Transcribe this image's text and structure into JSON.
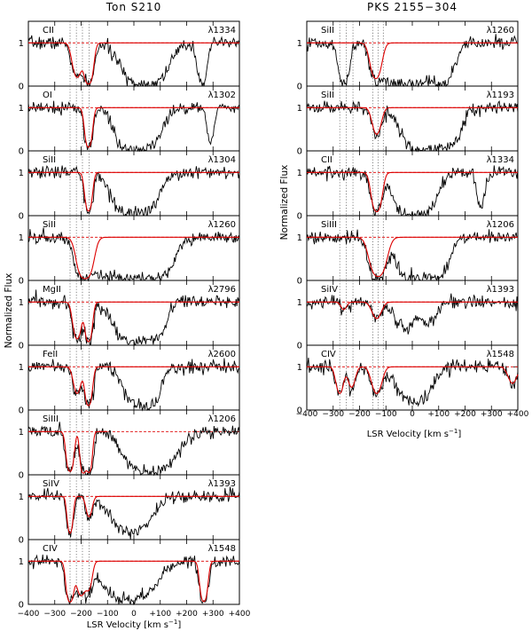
{
  "figure": {
    "ylabel": "Normalized Flux",
    "xlabel": "LSR Velocity [km s",
    "xlabel_sup": "−1",
    "xlabel_end": "]"
  },
  "chart_data": [
    {
      "type": "line",
      "title": "Ton S210",
      "xlim": [
        -400,
        400
      ],
      "ylim": [
        0,
        1.5
      ],
      "x_ticks": [
        -400,
        -300,
        -200,
        -100,
        0,
        100,
        200,
        300,
        400
      ],
      "x_tick_labels": [
        "−400",
        "−300",
        "−200",
        "−100",
        "0",
        "+100",
        "+200",
        "+300",
        "+400"
      ],
      "y_ticks": [
        0,
        1
      ],
      "component_velocities": [
        -242,
        -218,
        -195,
        -170
      ],
      "panels": [
        {
          "ion": "CII",
          "line": "λ1334",
          "absorptions": [
            [
              -215,
              0.5,
              16
            ],
            [
              -172,
              0.95,
              14
            ],
            [
              40,
              1.0,
              55
            ],
            [
              260,
              0.7,
              14
            ]
          ],
          "model": [
            [
              -215,
              0.5,
              14
            ],
            [
              -172,
              0.95,
              12
            ]
          ],
          "model_xmax": 400
        },
        {
          "ion": "OI",
          "line": "λ1302",
          "absorptions": [
            [
              -172,
              0.8,
              12
            ],
            [
              20,
              0.98,
              50
            ],
            [
              -18,
              0.6,
              30
            ],
            [
              290,
              0.5,
              10
            ]
          ],
          "model": [
            [
              -172,
              0.78,
              10
            ]
          ],
          "model_xmax": 400
        },
        {
          "ion": "SiII",
          "line": "λ1304",
          "absorptions": [
            [
              -172,
              0.7,
              12
            ],
            [
              20,
              0.95,
              45
            ],
            [
              -40,
              0.5,
              35
            ]
          ],
          "model": [
            [
              -172,
              0.7,
              10
            ]
          ],
          "model_xmax": 400
        },
        {
          "ion": "SiII",
          "line": "λ1260",
          "absorptions": [
            [
              -190,
              1.0,
              22
            ],
            [
              10,
              0.98,
              65
            ],
            [
              -110,
              0.6,
              40
            ],
            [
              110,
              0.4,
              30
            ]
          ],
          "model": [
            [
              -185,
              1.0,
              20
            ]
          ],
          "model_xmax": 400
        },
        {
          "ion": "MgII",
          "line": "λ2796",
          "absorptions": [
            [
              -215,
              0.6,
              14
            ],
            [
              -172,
              0.8,
              12
            ],
            [
              0,
              0.85,
              50
            ],
            [
              90,
              0.4,
              25
            ]
          ],
          "model": [
            [
              -215,
              0.6,
              12
            ],
            [
              -172,
              0.78,
              10
            ]
          ],
          "model_xmax": 400
        },
        {
          "ion": "FeII",
          "line": "λ2600",
          "absorptions": [
            [
              -215,
              0.3,
              14
            ],
            [
              -172,
              0.75,
              12
            ],
            [
              20,
              0.7,
              40
            ],
            [
              70,
              0.5,
              20
            ]
          ],
          "model": [
            [
              -215,
              0.3,
              12
            ],
            [
              -172,
              0.72,
              10
            ]
          ],
          "model_xmax": 400
        },
        {
          "ion": "SiIII",
          "line": "λ1206",
          "absorptions": [
            [
              -242,
              0.8,
              12
            ],
            [
              -190,
              1.0,
              10
            ],
            [
              -168,
              0.9,
              10
            ],
            [
              60,
              1.0,
              60
            ]
          ],
          "model": [
            [
              -242,
              0.8,
              10
            ],
            [
              -192,
              1.0,
              8
            ],
            [
              -170,
              0.9,
              8
            ]
          ],
          "model_xmax": -100
        },
        {
          "ion": "SiIV",
          "line": "λ1393",
          "absorptions": [
            [
              -242,
              0.6,
              10
            ],
            [
              -170,
              0.2,
              12
            ],
            [
              -10,
              0.55,
              55
            ]
          ],
          "model": [
            [
              -242,
              0.6,
              8
            ],
            [
              -170,
              0.2,
              10
            ]
          ],
          "model_xmax": 400
        },
        {
          "ion": "CIV",
          "line": "λ1548",
          "absorptions": [
            [
              -242,
              0.9,
              12
            ],
            [
              -200,
              0.5,
              16
            ],
            [
              -170,
              0.3,
              12
            ],
            [
              -20,
              0.7,
              70
            ],
            [
              265,
              0.85,
              12
            ]
          ],
          "model": [
            [
              -242,
              0.9,
              10
            ],
            [
              -200,
              0.5,
              14
            ],
            [
              -170,
              0.3,
              10
            ],
            [
              265,
              0.85,
              10
            ]
          ],
          "model_xmax": 400
        }
      ]
    },
    {
      "type": "line",
      "title": "PKS 2155−304",
      "xlim": [
        -400,
        400
      ],
      "ylim": [
        0,
        1.5
      ],
      "x_ticks": [
        -400,
        -300,
        -200,
        -100,
        0,
        100,
        200,
        300,
        400
      ],
      "x_tick_labels": [
        "−400",
        "−300",
        "−200",
        "−100",
        "0",
        "+100",
        "+200",
        "+300",
        "+400"
      ],
      "y_ticks": [
        0,
        1
      ],
      "component_velocities": [
        -275,
        -250,
        -225,
        -150,
        -130,
        -110
      ],
      "panels": [
        {
          "ion": "SiII",
          "line": "λ1260",
          "absorptions": [
            [
              -260,
              0.9,
              14
            ],
            [
              -138,
              0.55,
              18
            ],
            [
              0,
              1.0,
              55
            ],
            [
              -80,
              0.6,
              30
            ],
            [
              110,
              0.8,
              30
            ]
          ],
          "model": [
            [
              -138,
              0.55,
              16
            ]
          ],
          "model_xmax": 400
        },
        {
          "ion": "SiII",
          "line": "λ1193",
          "absorptions": [
            [
              -135,
              0.3,
              16
            ],
            [
              20,
              1.0,
              40
            ],
            [
              80,
              0.8,
              40
            ],
            [
              150,
              0.4,
              30
            ]
          ],
          "model": [
            [
              -135,
              0.3,
              14
            ]
          ],
          "model_xmax": 400
        },
        {
          "ion": "CII",
          "line": "λ1334",
          "absorptions": [
            [
              -135,
              0.75,
              16
            ],
            [
              20,
              1.0,
              45
            ],
            [
              -20,
              0.7,
              30
            ],
            [
              260,
              0.5,
              12
            ]
          ],
          "model": [
            [
              -135,
              0.75,
              14
            ]
          ],
          "model_xmax": 400
        },
        {
          "ion": "SiIII",
          "line": "λ1206",
          "absorptions": [
            [
              -130,
              0.75,
              22
            ],
            [
              -150,
              0.3,
              12
            ],
            [
              10,
              0.9,
              45
            ],
            [
              100,
              0.6,
              30
            ]
          ],
          "model": [
            [
              -130,
              0.75,
              22
            ]
          ],
          "model_xmax": 400
        },
        {
          "ion": "SiIV",
          "line": "λ1393",
          "absorptions": [
            [
              -135,
              0.15,
              16
            ],
            [
              -260,
              0.06,
              10
            ],
            [
              -30,
              0.3,
              30
            ],
            [
              60,
              0.2,
              30
            ]
          ],
          "model": [
            [
              -135,
              0.15,
              16
            ],
            [
              -260,
              0.06,
              10
            ]
          ],
          "model_xmax": 400
        },
        {
          "ion": "CIV",
          "line": "λ1548",
          "absorptions": [
            [
              -275,
              0.3,
              12
            ],
            [
              -230,
              0.2,
              12
            ],
            [
              -135,
              0.3,
              18
            ],
            [
              -10,
              0.4,
              40
            ],
            [
              40,
              0.3,
              30
            ],
            [
              380,
              0.15,
              15
            ]
          ],
          "model": [
            [
              -275,
              0.3,
              12
            ],
            [
              -230,
              0.2,
              12
            ],
            [
              -135,
              0.3,
              16
            ],
            [
              380,
              0.15,
              15
            ]
          ],
          "model_xmax": 400
        }
      ]
    }
  ]
}
